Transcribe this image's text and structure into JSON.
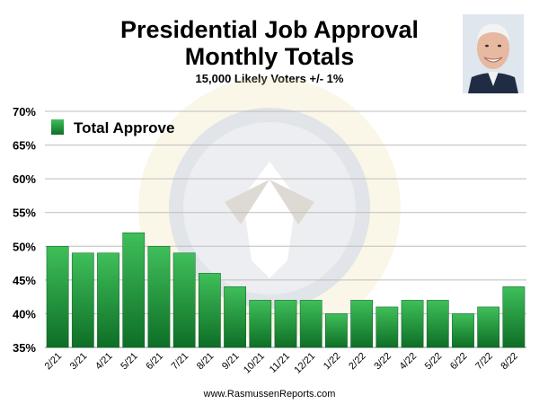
{
  "chart_data": {
    "type": "bar",
    "title": "Presidential Job Approval",
    "title_line2": "Monthly Totals",
    "subtitle": "15,000 Likely Voters +/- 1%",
    "categories": [
      "2/21",
      "3/21",
      "4/21",
      "5/21",
      "6/21",
      "7/21",
      "8/21",
      "9/21",
      "10/21",
      "11/21",
      "12/21",
      "1/22",
      "2/22",
      "3/22",
      "4/22",
      "5/22",
      "6/22",
      "7/22",
      "8/22"
    ],
    "series": [
      {
        "name": "Total Approve",
        "values": [
          50,
          49,
          49,
          52,
          50,
          49,
          46,
          44,
          42,
          42,
          42,
          40,
          42,
          41,
          42,
          42,
          40,
          41,
          44
        ]
      }
    ],
    "yticks": [
      "70%",
      "65%",
      "60%",
      "55%",
      "50%",
      "45%",
      "40%",
      "35%"
    ],
    "ylim": [
      35,
      70
    ],
    "xlabel": "",
    "ylabel": "",
    "grid": true,
    "legend_position": "top-left",
    "bar_color": "#1f9a3a",
    "source": "www.RasmussenReports.com"
  }
}
